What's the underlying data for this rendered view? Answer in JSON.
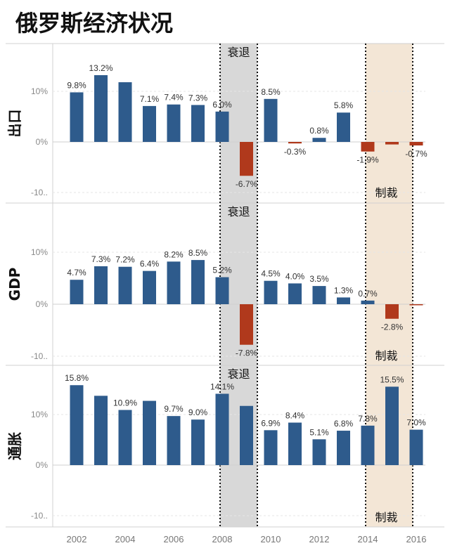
{
  "title": "俄罗斯经济状况",
  "recession_label": "衰退",
  "sanctions_label": "制裁",
  "colors": {
    "positive": "#2e5b8c",
    "negative": "#b0391c",
    "recession_band": "#d8d8d8",
    "sanction_band": "#f3e6d6"
  },
  "chart_data": {
    "type": "bar",
    "years": [
      2002,
      2003,
      2004,
      2005,
      2006,
      2007,
      2008,
      2009,
      2010,
      2011,
      2012,
      2013,
      2014,
      2015,
      2016
    ],
    "x_tick_labels": [
      "2002",
      "2004",
      "2006",
      "2008",
      "2010",
      "2012",
      "2014",
      "2016"
    ],
    "y_ticks": [
      {
        "value": 10,
        "label": "10%"
      },
      {
        "value": 0,
        "label": "0%"
      },
      {
        "value": -10,
        "label": "-10.."
      }
    ],
    "ylim": [
      -10,
      13.5
    ],
    "recession_years": [
      2008,
      2009
    ],
    "sanction_years": [
      2015,
      2016
    ],
    "panels": [
      {
        "label": "出口",
        "values": [
          9.8,
          13.2,
          11.8,
          7.1,
          7.4,
          7.3,
          6.0,
          -6.7,
          8.5,
          -0.3,
          0.8,
          5.8,
          -1.9,
          -0.5,
          -0.7
        ],
        "labels": [
          "9.8%",
          "13.2%",
          "",
          "7.1%",
          "7.4%",
          "7.3%",
          "6.0%",
          "-6.7%",
          "8.5%",
          "-0.3%",
          "0.8%",
          "5.8%",
          "-1.9%",
          "",
          "-0.7%"
        ]
      },
      {
        "label": "GDP",
        "values": [
          4.7,
          7.3,
          7.2,
          6.4,
          8.2,
          8.5,
          5.2,
          -7.8,
          4.5,
          4.0,
          3.5,
          1.3,
          0.7,
          -2.8,
          -0.2
        ],
        "labels": [
          "4.7%",
          "7.3%",
          "7.2%",
          "6.4%",
          "8.2%",
          "8.5%",
          "5.2%",
          "-7.8%",
          "4.5%",
          "4.0%",
          "3.5%",
          "1.3%",
          "0.7%",
          "-2.8%",
          ""
        ]
      },
      {
        "label": "通胀",
        "values": [
          15.8,
          13.7,
          10.9,
          12.7,
          9.7,
          9.0,
          14.1,
          11.7,
          6.9,
          8.4,
          5.1,
          6.8,
          7.8,
          15.5,
          7.0
        ],
        "labels": [
          "15.8%",
          "",
          "10.9%",
          "",
          "9.7%",
          "9.0%",
          "14.1%",
          "",
          "6.9%",
          "8.4%",
          "5.1%",
          "6.8%",
          "7.8%",
          "15.5%",
          "7.0%"
        ]
      }
    ]
  }
}
